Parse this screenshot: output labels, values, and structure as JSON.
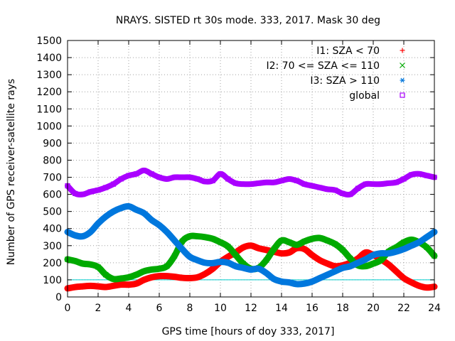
{
  "chart_data": {
    "type": "scatter",
    "title": "NRAYS. SISTED rt 30s mode. 333, 2017. Mask 30 deg",
    "xlabel": "GPS time [hours of doy 333, 2017]",
    "ylabel": "Number of GPS receiver-satellite rays",
    "xlim": [
      0,
      24
    ],
    "ylim": [
      0,
      1500
    ],
    "xticks": [
      0,
      2,
      4,
      6,
      8,
      10,
      12,
      14,
      16,
      18,
      20,
      22,
      24
    ],
    "yticks": [
      0,
      100,
      200,
      300,
      400,
      500,
      600,
      700,
      800,
      900,
      1000,
      1100,
      1200,
      1300,
      1400,
      1500
    ],
    "grid": true,
    "legend_position": "top-right",
    "reference_line": {
      "y": 100,
      "color": "#00cccc"
    },
    "series": [
      {
        "name": "I1: SZA < 70",
        "marker": "+",
        "color": "#ff0000",
        "x": [
          0,
          0.5,
          1,
          1.5,
          2,
          2.5,
          3,
          3.5,
          4,
          4.5,
          5,
          5.5,
          6,
          6.5,
          7,
          7.5,
          8,
          8.5,
          9,
          9.5,
          10,
          10.5,
          11,
          11.5,
          12,
          12.5,
          13,
          13.5,
          14,
          14.5,
          15,
          15.5,
          16,
          16.5,
          17,
          17.5,
          18,
          18.5,
          19,
          19.5,
          20,
          20.5,
          21,
          21.5,
          22,
          22.5,
          23,
          23.5,
          24
        ],
        "values": [
          50,
          58,
          62,
          65,
          62,
          58,
          65,
          72,
          72,
          78,
          100,
          115,
          122,
          122,
          118,
          112,
          110,
          115,
          135,
          165,
          205,
          235,
          260,
          290,
          300,
          285,
          275,
          265,
          255,
          260,
          285,
          280,
          245,
          215,
          195,
          180,
          185,
          200,
          225,
          260,
          245,
          220,
          190,
          150,
          110,
          85,
          65,
          55,
          60
        ]
      },
      {
        "name": "I2: 70 <= SZA <= 110",
        "marker": "x",
        "color": "#00aa00",
        "x": [
          0,
          0.5,
          1,
          1.5,
          2,
          2.5,
          3,
          3.5,
          4,
          4.5,
          5,
          5.5,
          6,
          6.5,
          7,
          7.5,
          8,
          8.5,
          9,
          9.5,
          10,
          10.5,
          11,
          11.5,
          12,
          12.5,
          13,
          13.5,
          14,
          14.5,
          15,
          15.5,
          16,
          16.5,
          17,
          17.5,
          18,
          18.5,
          19,
          19.5,
          20,
          20.5,
          21,
          21.5,
          22,
          22.5,
          23,
          23.5,
          24
        ],
        "values": [
          220,
          210,
          195,
          190,
          175,
          130,
          105,
          108,
          115,
          130,
          150,
          160,
          165,
          180,
          240,
          325,
          355,
          355,
          350,
          340,
          320,
          295,
          245,
          195,
          165,
          170,
          215,
          280,
          330,
          320,
          305,
          325,
          340,
          345,
          330,
          310,
          275,
          225,
          185,
          180,
          195,
          215,
          265,
          290,
          320,
          335,
          320,
          290,
          240
        ]
      },
      {
        "name": "I3: SZA > 110",
        "marker": "*",
        "color": "#0077dd",
        "x": [
          0,
          0.5,
          1,
          1.5,
          2,
          2.5,
          3,
          3.5,
          4,
          4.5,
          5,
          5.5,
          6,
          6.5,
          7,
          7.5,
          8,
          8.5,
          9,
          9.5,
          10,
          10.5,
          11,
          11.5,
          12,
          12.5,
          13,
          13.5,
          14,
          14.5,
          15,
          15.5,
          16,
          16.5,
          17,
          17.5,
          18,
          18.5,
          19,
          19.5,
          20,
          20.5,
          21,
          21.5,
          22,
          22.5,
          23,
          23.5,
          24
        ],
        "values": [
          380,
          360,
          355,
          380,
          430,
          470,
          500,
          520,
          530,
          510,
          490,
          450,
          420,
          380,
          330,
          280,
          235,
          215,
          200,
          198,
          205,
          200,
          180,
          170,
          160,
          165,
          140,
          105,
          90,
          85,
          75,
          78,
          90,
          110,
          130,
          150,
          170,
          180,
          200,
          220,
          245,
          255,
          255,
          265,
          280,
          300,
          320,
          350,
          380
        ]
      },
      {
        "name": "global",
        "marker": "square",
        "color": "#aa00ff",
        "x": [
          0,
          0.5,
          1,
          1.5,
          2,
          2.5,
          3,
          3.5,
          4,
          4.5,
          5,
          5.5,
          6,
          6.5,
          7,
          7.5,
          8,
          8.5,
          9,
          9.5,
          10,
          10.5,
          11,
          11.5,
          12,
          12.5,
          13,
          13.5,
          14,
          14.5,
          15,
          15.5,
          16,
          16.5,
          17,
          17.5,
          18,
          18.5,
          19,
          19.5,
          20,
          20.5,
          21,
          21.5,
          22,
          22.5,
          23,
          23.5,
          24
        ],
        "values": [
          650,
          605,
          600,
          615,
          625,
          640,
          660,
          690,
          710,
          720,
          740,
          720,
          700,
          690,
          700,
          700,
          700,
          690,
          675,
          680,
          720,
          690,
          665,
          660,
          660,
          665,
          670,
          670,
          680,
          690,
          680,
          660,
          650,
          640,
          630,
          625,
          605,
          600,
          635,
          660,
          660,
          660,
          665,
          670,
          690,
          715,
          720,
          710,
          700
        ]
      }
    ]
  }
}
